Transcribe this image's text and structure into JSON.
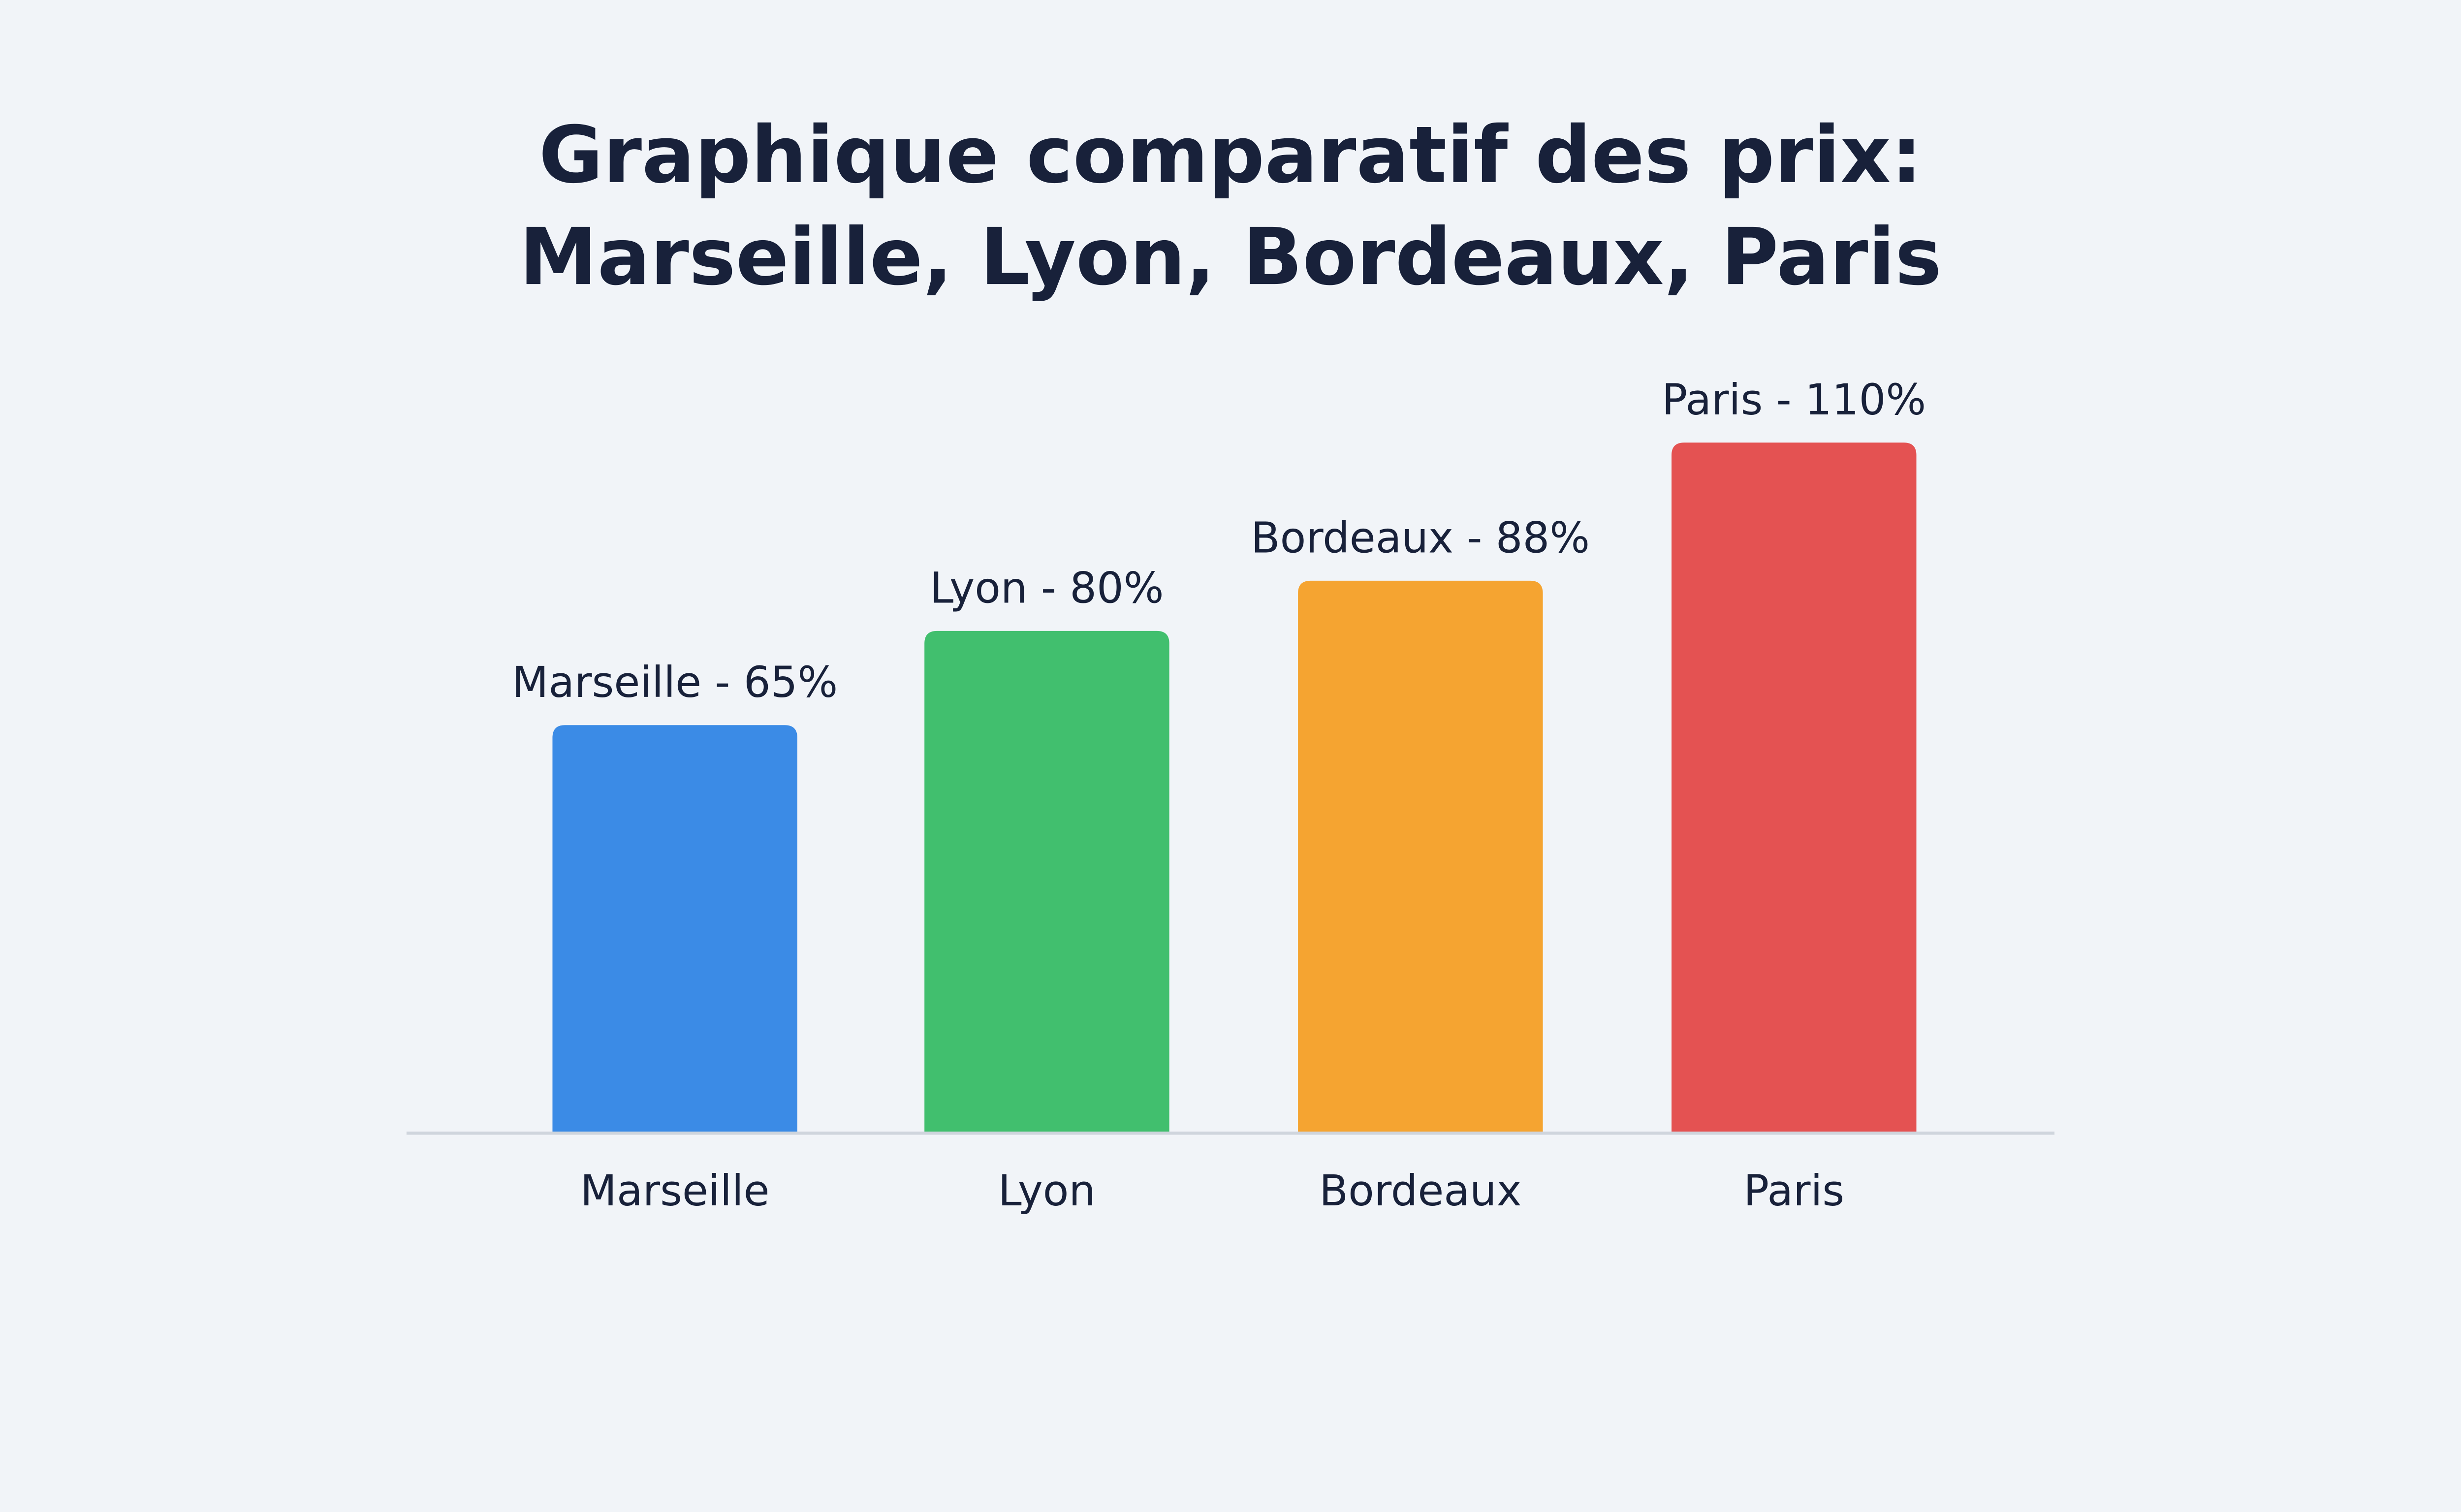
{
  "chart_data": {
    "type": "bar",
    "title_lines": [
      "Graphique comparatif des prix:",
      "Marseille, Lyon, Bordeaux, Paris"
    ],
    "categories": [
      "Marseille",
      "Lyon",
      "Bordeaux",
      "Paris"
    ],
    "values": [
      65,
      80,
      88,
      110
    ],
    "unit": "%",
    "data_labels": [
      "Marseille - 65%",
      "Lyon - 80%",
      "Bordeaux - 88%",
      "Paris - 110%"
    ],
    "colors": [
      "#3b8be6",
      "#41bf6e",
      "#f5a431",
      "#e45252"
    ],
    "xlabel": "",
    "ylabel": "",
    "grid": false,
    "legend": "none"
  }
}
